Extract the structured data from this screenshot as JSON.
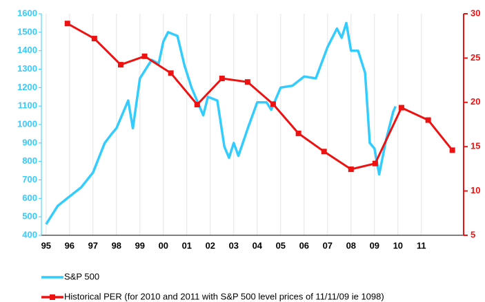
{
  "chart_data": {
    "type": "line",
    "xlim": [
      1994.8,
      2012.8
    ],
    "xticks": [
      {
        "value": 1995,
        "label": "95"
      },
      {
        "value": 1996,
        "label": "96"
      },
      {
        "value": 1997,
        "label": "97"
      },
      {
        "value": 1998,
        "label": "98"
      },
      {
        "value": 1999,
        "label": "99"
      },
      {
        "value": 2000,
        "label": "00"
      },
      {
        "value": 2001,
        "label": "01"
      },
      {
        "value": 2002,
        "label": "02"
      },
      {
        "value": 2003,
        "label": "03"
      },
      {
        "value": 2004,
        "label": "04"
      },
      {
        "value": 2005,
        "label": "05"
      },
      {
        "value": 2006,
        "label": "06"
      },
      {
        "value": 2007,
        "label": "07"
      },
      {
        "value": 2008,
        "label": "08"
      },
      {
        "value": 2009,
        "label": "09"
      },
      {
        "value": 2010,
        "label": "10"
      },
      {
        "value": 2011,
        "label": "11"
      }
    ],
    "ylim": [
      400,
      1600
    ],
    "yticks": [
      400,
      500,
      600,
      700,
      800,
      900,
      1000,
      1100,
      1200,
      1300,
      1400,
      1500,
      1600
    ],
    "y2lim": [
      5,
      30
    ],
    "y2ticks": [
      5,
      10,
      15,
      20,
      25,
      30
    ],
    "grid": "x",
    "series": [
      {
        "name": "S&P 500",
        "color": "#33ccff",
        "marker": "none",
        "x": [
          1995.0,
          1995.5,
          1996.0,
          1996.5,
          1997.0,
          1997.5,
          1997.8,
          1998.0,
          1998.5,
          1998.7,
          1999.0,
          1999.5,
          1999.8,
          2000.0,
          2000.2,
          2000.6,
          2000.9,
          2001.2,
          2001.7,
          2001.9,
          2002.3,
          2002.6,
          2002.8,
          2003.0,
          2003.2,
          2003.6,
          2004.0,
          2004.4,
          2004.6,
          2005.0,
          2005.5,
          2006.0,
          2006.5,
          2007.0,
          2007.4,
          2007.6,
          2007.8,
          2008.0,
          2008.3,
          2008.6,
          2008.8,
          2009.0,
          2009.2,
          2009.5,
          2009.8,
          2009.9
        ],
        "values": [
          460,
          560,
          610,
          660,
          740,
          900,
          950,
          980,
          1130,
          980,
          1250,
          1350,
          1330,
          1450,
          1500,
          1480,
          1320,
          1200,
          1050,
          1150,
          1130,
          880,
          820,
          900,
          830,
          980,
          1120,
          1120,
          1080,
          1200,
          1210,
          1260,
          1250,
          1420,
          1520,
          1470,
          1550,
          1400,
          1400,
          1280,
          900,
          870,
          730,
          920,
          1070,
          1098
        ]
      },
      {
        "name": "Historical PER (for 2010 and 2011 with S&P 500 level prices of 11/11/09 ie 1098)",
        "color": "#ee1111",
        "axis": "y2",
        "marker": "square",
        "x": [
          1995.91,
          1997.06,
          1998.18,
          1999.2,
          2000.32,
          2001.44,
          2002.5,
          2003.59,
          2004.68,
          2005.76,
          2006.85,
          2008.0,
          2009.03,
          2010.15,
          2011.29,
          2012.32
        ],
        "values": [
          28.9,
          27.2,
          24.25,
          25.2,
          23.3,
          19.75,
          22.7,
          22.3,
          19.8,
          16.5,
          14.45,
          12.45,
          13.1,
          19.4,
          18.0,
          14.6
        ]
      }
    ]
  }
}
